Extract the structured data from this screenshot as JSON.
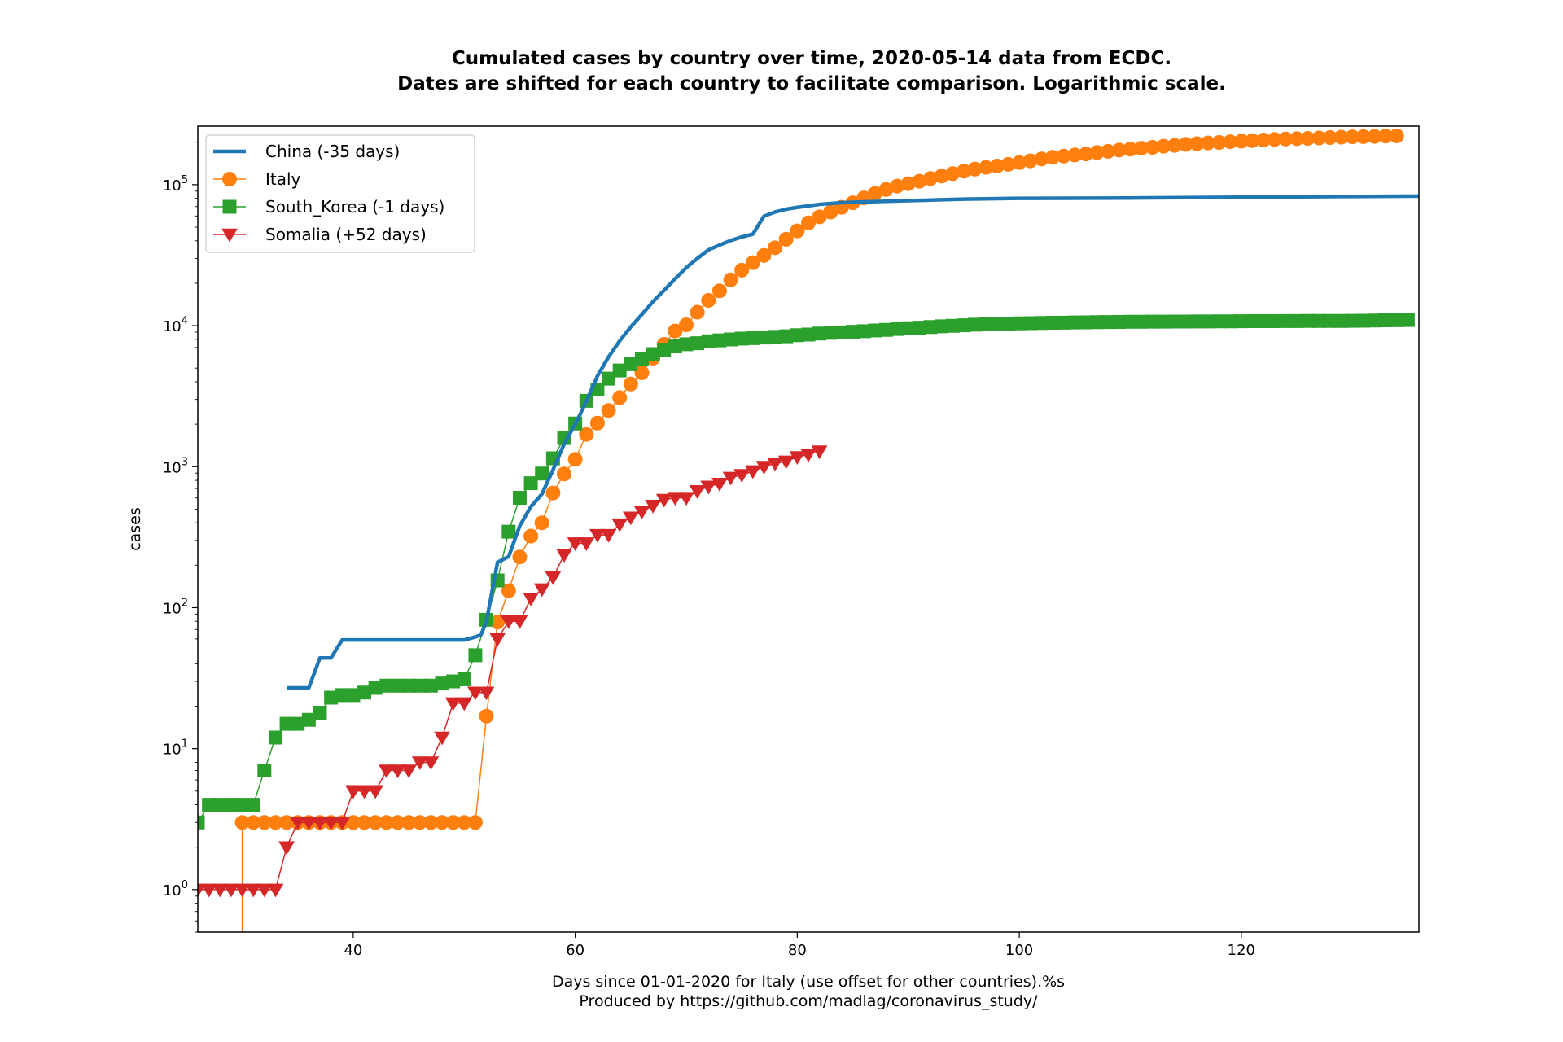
{
  "chart_data": {
    "type": "line",
    "title": [
      "Cumulated cases by country over time, 2020-05-14 data from ECDC.",
      "Dates are shifted for each country to facilitate comparison. Logarithmic scale."
    ],
    "xlabel": [
      "Days since 01-01-2020 for Italy (use offset for other countries).%s",
      "Produced by https://github.com/madlag/coronavirus_study/"
    ],
    "ylabel": "cases",
    "xscale": "linear",
    "yscale": "log",
    "xlim": [
      26,
      136
    ],
    "ylim": [
      0.5,
      260000
    ],
    "grid": false,
    "legend_position": "top-left",
    "x_ticks": [
      {
        "value": 40,
        "label": "40"
      },
      {
        "value": 60,
        "label": "60"
      },
      {
        "value": 80,
        "label": "80"
      },
      {
        "value": 100,
        "label": "100"
      },
      {
        "value": 120,
        "label": "120"
      }
    ],
    "y_ticks": [
      {
        "value": 1,
        "base": "10",
        "exp": "0"
      },
      {
        "value": 10,
        "base": "10",
        "exp": "1"
      },
      {
        "value": 100,
        "base": "10",
        "exp": "2"
      },
      {
        "value": 1000,
        "base": "10",
        "exp": "3"
      },
      {
        "value": 10000,
        "base": "10",
        "exp": "4"
      },
      {
        "value": 100000,
        "base": "10",
        "exp": "5"
      }
    ],
    "series": [
      {
        "name": "China (-35 days)",
        "color": "#1f77b4",
        "marker": "none",
        "line_width": 4.5,
        "x": [
          34,
          35,
          36,
          37,
          38,
          39,
          40,
          45,
          50,
          51,
          51.5,
          52,
          53,
          54,
          55,
          56,
          57,
          58,
          59,
          60,
          61,
          62,
          63,
          64,
          65,
          66,
          67,
          68,
          69,
          70,
          71,
          72,
          73,
          74,
          75,
          76,
          77,
          78,
          79,
          80,
          82,
          84,
          86,
          90,
          95,
          100,
          110,
          120,
          130,
          136
        ],
        "y": [
          27,
          27,
          27,
          44,
          44,
          59,
          59,
          59,
          59,
          62,
          64,
          80,
          210,
          230,
          380,
          520,
          640,
          950,
          1450,
          2000,
          2900,
          4400,
          6000,
          7800,
          9800,
          12000,
          14800,
          17800,
          21500,
          25800,
          30000,
          34500,
          37300,
          40200,
          42600,
          44600,
          59800,
          64000,
          67000,
          69000,
          72500,
          74500,
          75500,
          77000,
          79000,
          80000,
          80500,
          81500,
          82500,
          83000
        ]
      },
      {
        "name": "Italy",
        "color": "#ff7f0e",
        "marker": "circle",
        "line_width": 1.5,
        "x": [
          30,
          30,
          31,
          32,
          33,
          34,
          35,
          36,
          37,
          38,
          39,
          40,
          41,
          42,
          43,
          44,
          45,
          46,
          47,
          48,
          49,
          50,
          51,
          52,
          53,
          54,
          55,
          56,
          57,
          58,
          59,
          60,
          61,
          62,
          63,
          64,
          65,
          66,
          67,
          68,
          69,
          70,
          71,
          72,
          73,
          74,
          75,
          76,
          77,
          78,
          79,
          80,
          81,
          82,
          83,
          84,
          85,
          86,
          87,
          88,
          89,
          90,
          91,
          92,
          93,
          94,
          95,
          96,
          97,
          98,
          99,
          100,
          101,
          102,
          103,
          104,
          105,
          106,
          107,
          108,
          109,
          110,
          111,
          112,
          113,
          114,
          115,
          116,
          117,
          118,
          119,
          120,
          121,
          122,
          123,
          124,
          125,
          126,
          127,
          128,
          129,
          130,
          131,
          132,
          133,
          134
        ],
        "y": [
          0.3,
          3,
          3,
          3,
          3,
          3,
          3,
          3,
          3,
          3,
          3,
          3,
          3,
          3,
          3,
          3,
          3,
          3,
          3,
          3,
          3,
          3,
          3,
          17,
          79,
          132,
          229,
          322,
          400,
          650,
          888,
          1128,
          1694,
          2036,
          2502,
          3089,
          3858,
          4636,
          5883,
          7375,
          9172,
          10149,
          12462,
          15113,
          17660,
          21157,
          24747,
          27980,
          31506,
          35713,
          41035,
          47021,
          53578,
          59138,
          63927,
          69176,
          74386,
          80589,
          86498,
          92472,
          97689,
          101739,
          105792,
          110574,
          115242,
          119827,
          124632,
          128948,
          132547,
          135586,
          139422,
          143626,
          147577,
          152271,
          156363,
          159516,
          162488,
          165155,
          168941,
          172434,
          175925,
          178972,
          181228,
          183957,
          187327,
          189973,
          192994,
          195351,
          197675,
          199414,
          201505,
          203591,
          205463,
          207428,
          209328,
          210717,
          211938,
          213013,
          214457,
          215858,
          217185,
          218268,
          219070,
          219814,
          221216,
          222104
        ]
      },
      {
        "name": "South_Korea (-1 days)",
        "color": "#2ca02c",
        "marker": "square",
        "line_width": 1.5,
        "x": [
          26,
          27,
          28,
          29,
          30,
          31,
          32,
          33,
          34,
          35,
          36,
          37,
          38,
          39,
          40,
          41,
          42,
          43,
          44,
          45,
          46,
          47,
          48,
          49,
          50,
          51,
          52,
          53,
          54,
          55,
          56,
          57,
          58,
          59,
          60,
          61,
          62,
          63,
          64,
          65,
          66,
          67,
          68,
          69,
          70,
          71,
          72,
          73,
          74,
          75,
          76,
          77,
          78,
          79,
          80,
          81,
          82,
          83,
          84,
          85,
          86,
          87,
          88,
          89,
          90,
          91,
          92,
          93,
          94,
          95,
          96,
          97,
          98,
          99,
          100,
          101,
          102,
          103,
          104,
          105,
          106,
          107,
          108,
          109,
          110,
          111,
          112,
          113,
          114,
          115,
          116,
          117,
          118,
          119,
          120,
          121,
          122,
          123,
          124,
          125,
          126,
          127,
          128,
          129,
          130,
          131,
          132,
          133,
          134,
          135
        ],
        "y": [
          3,
          4,
          4,
          4,
          4,
          4,
          7,
          12,
          15,
          15,
          16,
          18,
          23,
          24,
          24,
          25,
          27,
          28,
          28,
          28,
          28,
          28,
          29,
          30,
          31,
          46,
          82,
          156,
          346,
          602,
          763,
          893,
          1146,
          1595,
          2022,
          2931,
          3526,
          4212,
          4812,
          5328,
          5766,
          6284,
          6767,
          7134,
          7382,
          7513,
          7755,
          7869,
          7979,
          8086,
          8162,
          8236,
          8320,
          8413,
          8565,
          8652,
          8799,
          8897,
          8961,
          9037,
          9137,
          9241,
          9332,
          9478,
          9583,
          9661,
          9786,
          9887,
          9976,
          10062,
          10156,
          10237,
          10284,
          10331,
          10384,
          10423,
          10450,
          10480,
          10512,
          10537,
          10564,
          10591,
          10613,
          10635,
          10653,
          10661,
          10674,
          10683,
          10694,
          10702,
          10708,
          10718,
          10728,
          10738,
          10752,
          10761,
          10765,
          10774,
          10780,
          10793,
          10801,
          10804,
          10806,
          10810,
          10822,
          10840,
          10874,
          10909,
          10936,
          10962
        ]
      },
      {
        "name": "Somalia (+52 days)",
        "color": "#d62728",
        "marker": "triangle-down",
        "line_width": 1.5,
        "x": [
          26,
          27,
          28,
          29,
          30,
          31,
          32,
          33,
          34,
          35,
          36,
          37,
          38,
          39,
          40,
          41,
          42,
          43,
          44,
          45,
          46,
          47,
          48,
          49,
          50,
          51,
          52,
          53,
          54,
          55,
          56,
          57,
          58,
          59,
          60,
          61,
          62,
          63,
          64,
          65,
          66,
          67,
          68,
          69,
          70,
          71,
          72,
          73,
          74,
          75,
          76,
          77,
          78,
          79,
          80,
          81,
          82
        ],
        "y": [
          1,
          1,
          1,
          1,
          1,
          1,
          1,
          1,
          2,
          3,
          3,
          3,
          3,
          3,
          5,
          5,
          5,
          7,
          7,
          7,
          8,
          8,
          12,
          21,
          21,
          25,
          25,
          60,
          80,
          80,
          116,
          135,
          164,
          237,
          286,
          286,
          328,
          328,
          390,
          436,
          480,
          528,
          582,
          601,
          601,
          671,
          722,
          756,
          835,
          873,
          928,
          997,
          1054,
          1089,
          1170,
          1219,
          1284
        ]
      }
    ]
  }
}
